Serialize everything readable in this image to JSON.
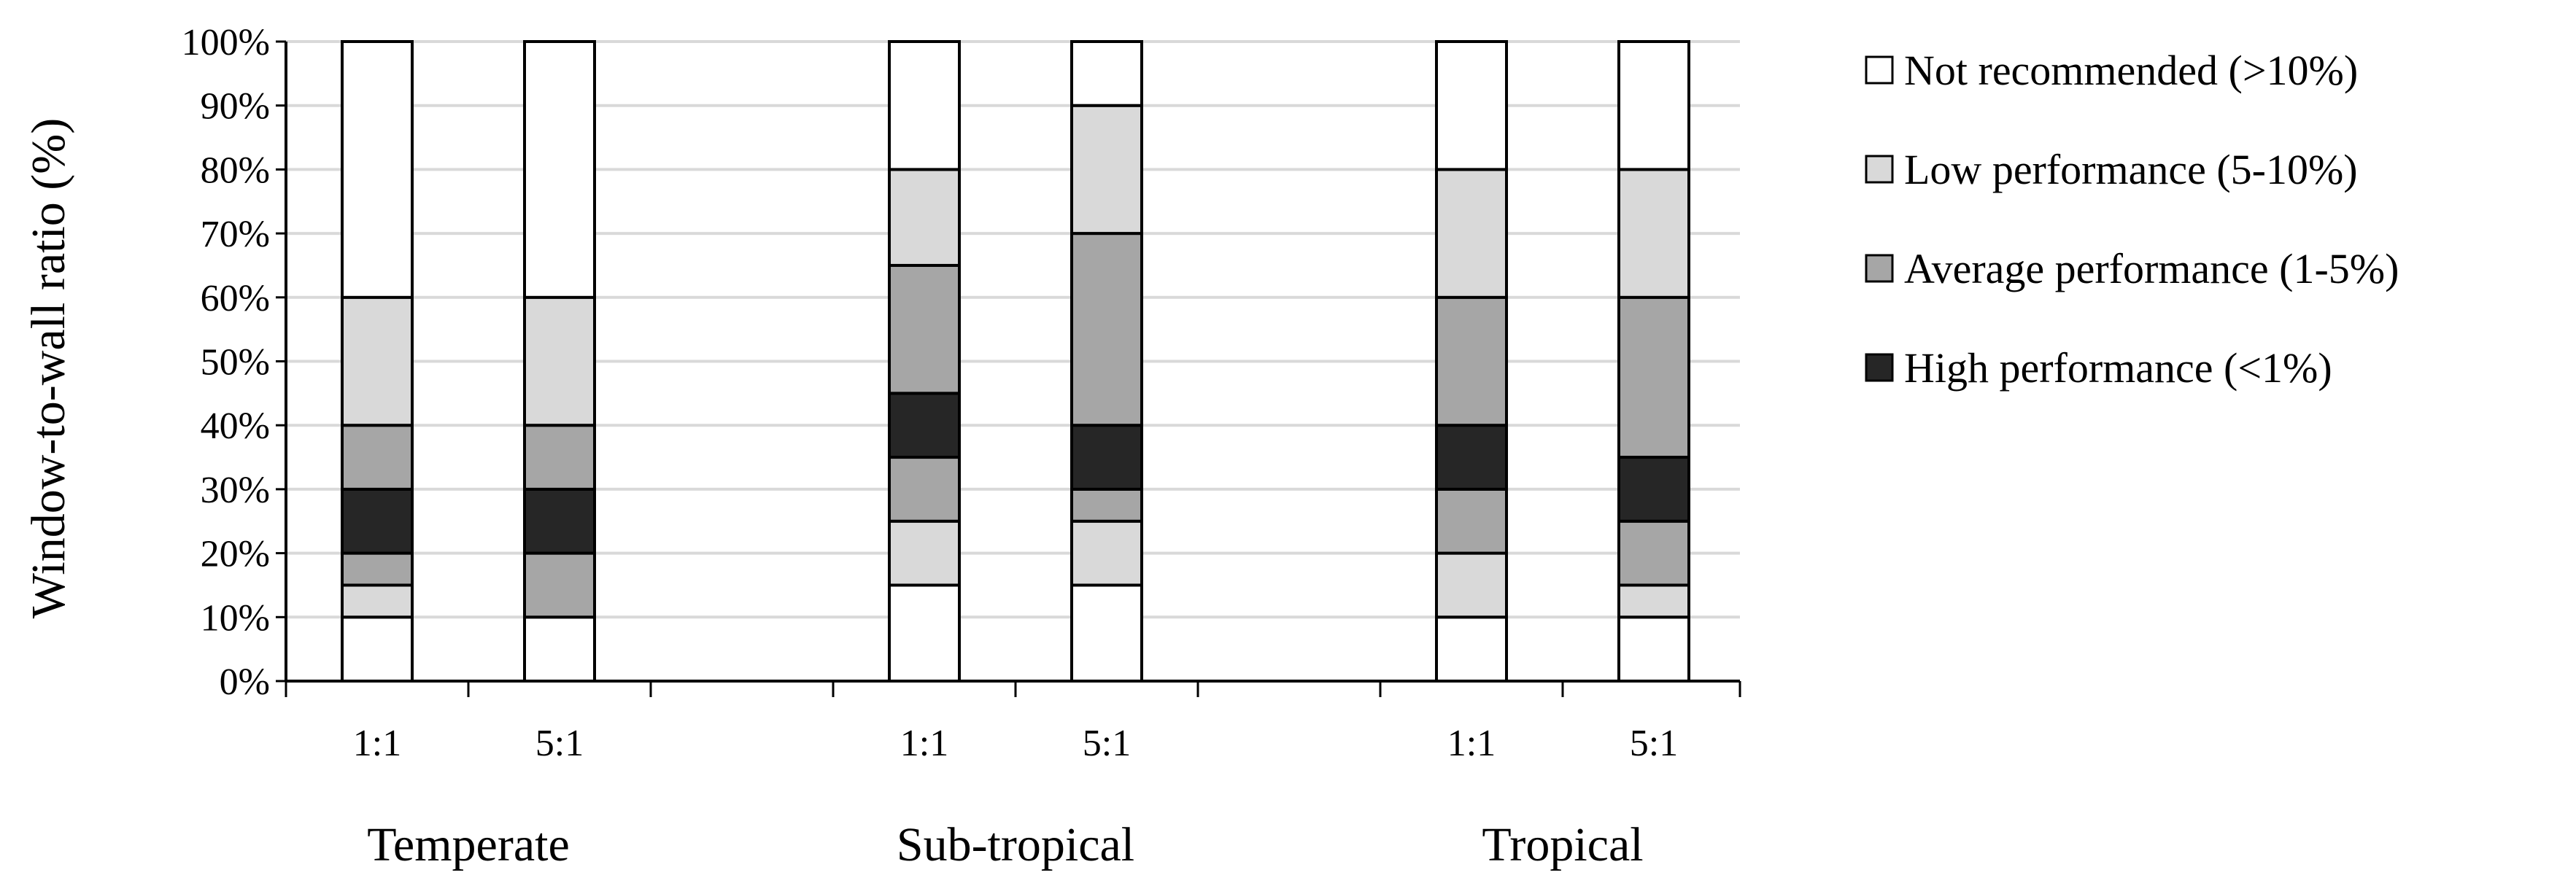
{
  "chart_data": {
    "type": "bar",
    "stacked": true,
    "ylabel": "Window-to-wall ratio (%)",
    "ylim": [
      0,
      100
    ],
    "yticks": [
      "0%",
      "10%",
      "20%",
      "30%",
      "40%",
      "50%",
      "60%",
      "70%",
      "80%",
      "90%",
      "100%"
    ],
    "grid": true,
    "legend_position": "right",
    "legend": [
      {
        "label": "Not recommended (>10%)",
        "color": "#ffffff"
      },
      {
        "label": "Low performance (5-10%)",
        "color": "#d9d9d9"
      },
      {
        "label": "Average performance (1-5%)",
        "color": "#a6a6a6"
      },
      {
        "label": "High performance (<1%)",
        "color": "#262626"
      }
    ],
    "groups": [
      {
        "name": "Temperate",
        "bars": [
          {
            "label": "1:1",
            "segments": [
              {
                "from": 0,
                "to": 10,
                "class": "Not recommended (>10%)"
              },
              {
                "from": 10,
                "to": 15,
                "class": "Low performance (5-10%)"
              },
              {
                "from": 15,
                "to": 20,
                "class": "Average performance (1-5%)"
              },
              {
                "from": 20,
                "to": 30,
                "class": "High performance (<1%)"
              },
              {
                "from": 30,
                "to": 40,
                "class": "Average performance (1-5%)"
              },
              {
                "from": 40,
                "to": 60,
                "class": "Low performance (5-10%)"
              },
              {
                "from": 60,
                "to": 100,
                "class": "Not recommended (>10%)"
              }
            ]
          },
          {
            "label": "5:1",
            "segments": [
              {
                "from": 0,
                "to": 10,
                "class": "Not recommended (>10%)"
              },
              {
                "from": 10,
                "to": 20,
                "class": "Average performance (1-5%)"
              },
              {
                "from": 20,
                "to": 30,
                "class": "High performance (<1%)"
              },
              {
                "from": 30,
                "to": 40,
                "class": "Average performance (1-5%)"
              },
              {
                "from": 40,
                "to": 60,
                "class": "Low performance (5-10%)"
              },
              {
                "from": 60,
                "to": 100,
                "class": "Not recommended (>10%)"
              }
            ]
          }
        ]
      },
      {
        "name": "Sub-tropical",
        "bars": [
          {
            "label": "1:1",
            "segments": [
              {
                "from": 0,
                "to": 15,
                "class": "Not recommended (>10%)"
              },
              {
                "from": 15,
                "to": 25,
                "class": "Low performance (5-10%)"
              },
              {
                "from": 25,
                "to": 35,
                "class": "Average performance (1-5%)"
              },
              {
                "from": 35,
                "to": 45,
                "class": "High performance (<1%)"
              },
              {
                "from": 45,
                "to": 65,
                "class": "Average performance (1-5%)"
              },
              {
                "from": 65,
                "to": 80,
                "class": "Low performance (5-10%)"
              },
              {
                "from": 80,
                "to": 100,
                "class": "Not recommended (>10%)"
              }
            ]
          },
          {
            "label": "5:1",
            "segments": [
              {
                "from": 0,
                "to": 15,
                "class": "Not recommended (>10%)"
              },
              {
                "from": 15,
                "to": 25,
                "class": "Low performance (5-10%)"
              },
              {
                "from": 25,
                "to": 30,
                "class": "Average performance (1-5%)"
              },
              {
                "from": 30,
                "to": 40,
                "class": "High performance (<1%)"
              },
              {
                "from": 40,
                "to": 70,
                "class": "Average performance (1-5%)"
              },
              {
                "from": 70,
                "to": 90,
                "class": "Low performance (5-10%)"
              },
              {
                "from": 90,
                "to": 100,
                "class": "Not recommended (>10%)"
              }
            ]
          }
        ]
      },
      {
        "name": "Tropical",
        "bars": [
          {
            "label": "1:1",
            "segments": [
              {
                "from": 0,
                "to": 10,
                "class": "Not recommended (>10%)"
              },
              {
                "from": 10,
                "to": 20,
                "class": "Low performance (5-10%)"
              },
              {
                "from": 20,
                "to": 30,
                "class": "Average performance (1-5%)"
              },
              {
                "from": 30,
                "to": 40,
                "class": "High performance (<1%)"
              },
              {
                "from": 40,
                "to": 60,
                "class": "Average performance (1-5%)"
              },
              {
                "from": 60,
                "to": 80,
                "class": "Low performance (5-10%)"
              },
              {
                "from": 80,
                "to": 100,
                "class": "Not recommended (>10%)"
              }
            ]
          },
          {
            "label": "5:1",
            "segments": [
              {
                "from": 0,
                "to": 10,
                "class": "Not recommended (>10%)"
              },
              {
                "from": 10,
                "to": 15,
                "class": "Low performance (5-10%)"
              },
              {
                "from": 15,
                "to": 25,
                "class": "Average performance (1-5%)"
              },
              {
                "from": 25,
                "to": 35,
                "class": "High performance (<1%)"
              },
              {
                "from": 35,
                "to": 60,
                "class": "Average performance (1-5%)"
              },
              {
                "from": 60,
                "to": 80,
                "class": "Low performance (5-10%)"
              },
              {
                "from": 80,
                "to": 100,
                "class": "Not recommended (>10%)"
              }
            ]
          }
        ]
      }
    ]
  }
}
